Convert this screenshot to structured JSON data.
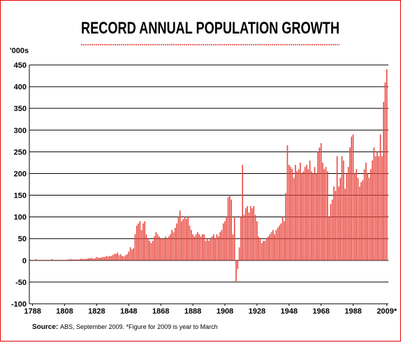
{
  "chart_data": {
    "type": "bar",
    "title": "RECORD ANNUAL POPULATION GROWTH",
    "y_label": "'000s",
    "source_label": "Source:",
    "source_text": "ABS, September 2009.  *Figure for 2009 is year to March",
    "color": "#e8473f",
    "grid": true,
    "xlim": [
      1786,
      2010
    ],
    "ylim": [
      -100,
      450
    ],
    "yticks": [
      -100,
      -50,
      0,
      50,
      100,
      150,
      200,
      250,
      300,
      350,
      400,
      450
    ],
    "xticks": [
      1788,
      1808,
      1828,
      1848,
      1868,
      1888,
      1908,
      1928,
      1948,
      1968,
      1988,
      {
        "value": 2009,
        "label": "2009*"
      }
    ],
    "x": [
      1788,
      1789,
      1790,
      1791,
      1792,
      1793,
      1794,
      1795,
      1796,
      1797,
      1798,
      1799,
      1800,
      1801,
      1802,
      1803,
      1804,
      1805,
      1806,
      1807,
      1808,
      1809,
      1810,
      1811,
      1812,
      1813,
      1814,
      1815,
      1816,
      1817,
      1818,
      1819,
      1820,
      1821,
      1822,
      1823,
      1824,
      1825,
      1826,
      1827,
      1828,
      1829,
      1830,
      1831,
      1832,
      1833,
      1834,
      1835,
      1836,
      1837,
      1838,
      1839,
      1840,
      1841,
      1842,
      1843,
      1844,
      1845,
      1846,
      1847,
      1848,
      1849,
      1850,
      1851,
      1852,
      1853,
      1854,
      1855,
      1856,
      1857,
      1858,
      1859,
      1860,
      1861,
      1862,
      1863,
      1864,
      1865,
      1866,
      1867,
      1868,
      1869,
      1870,
      1871,
      1872,
      1873,
      1874,
      1875,
      1876,
      1877,
      1878,
      1879,
      1880,
      1881,
      1882,
      1883,
      1884,
      1885,
      1886,
      1887,
      1888,
      1889,
      1890,
      1891,
      1892,
      1893,
      1894,
      1895,
      1896,
      1897,
      1898,
      1899,
      1900,
      1901,
      1902,
      1903,
      1904,
      1905,
      1906,
      1907,
      1908,
      1909,
      1910,
      1911,
      1912,
      1913,
      1914,
      1915,
      1916,
      1917,
      1918,
      1919,
      1920,
      1921,
      1922,
      1923,
      1924,
      1925,
      1926,
      1927,
      1928,
      1929,
      1930,
      1931,
      1932,
      1933,
      1934,
      1935,
      1936,
      1937,
      1938,
      1939,
      1940,
      1941,
      1942,
      1943,
      1944,
      1945,
      1946,
      1947,
      1948,
      1949,
      1950,
      1951,
      1952,
      1953,
      1954,
      1955,
      1956,
      1957,
      1958,
      1959,
      1960,
      1961,
      1962,
      1963,
      1964,
      1965,
      1966,
      1967,
      1968,
      1969,
      1970,
      1971,
      1972,
      1973,
      1974,
      1975,
      1976,
      1977,
      1978,
      1979,
      1980,
      1981,
      1982,
      1983,
      1984,
      1985,
      1986,
      1987,
      1988,
      1989,
      1990,
      1991,
      1992,
      1993,
      1994,
      1995,
      1996,
      1997,
      1998,
      1999,
      2000,
      2001,
      2002,
      2003,
      2004,
      2005,
      2006,
      2007,
      2008,
      2009
    ],
    "values": [
      1,
      1,
      3,
      1,
      1,
      1,
      1,
      1,
      1,
      1,
      1,
      1,
      3,
      1,
      1,
      1,
      1,
      1,
      1,
      1,
      1,
      1,
      2,
      2,
      3,
      2,
      2,
      2,
      2,
      2,
      4,
      3,
      3,
      3,
      4,
      5,
      5,
      6,
      4,
      5,
      8,
      6,
      6,
      7,
      8,
      8,
      10,
      9,
      10,
      10,
      12,
      15,
      15,
      18,
      12,
      14,
      10,
      9,
      12,
      14,
      20,
      30,
      25,
      28,
      60,
      80,
      85,
      90,
      70,
      85,
      90,
      60,
      50,
      45,
      40,
      45,
      55,
      65,
      60,
      55,
      50,
      50,
      50,
      55,
      50,
      55,
      60,
      70,
      65,
      75,
      85,
      100,
      115,
      90,
      95,
      100,
      95,
      100,
      80,
      70,
      60,
      55,
      60,
      65,
      60,
      55,
      60,
      60,
      45,
      50,
      45,
      50,
      55,
      60,
      50,
      60,
      55,
      65,
      70,
      85,
      90,
      100,
      145,
      150,
      140,
      60,
      100,
      -50,
      -20,
      30,
      100,
      220,
      105,
      120,
      125,
      110,
      125,
      120,
      125,
      105,
      90,
      55,
      50,
      40,
      45,
      45,
      50,
      55,
      60,
      65,
      70,
      60,
      70,
      75,
      80,
      85,
      100,
      90,
      155,
      265,
      220,
      215,
      210,
      190,
      220,
      205,
      210,
      225,
      200,
      205,
      215,
      220,
      210,
      230,
      205,
      200,
      215,
      200,
      250,
      260,
      270,
      225,
      210,
      215,
      205,
      100,
      130,
      140,
      170,
      160,
      240,
      170,
      190,
      240,
      230,
      165,
      200,
      215,
      260,
      285,
      290,
      200,
      210,
      190,
      170,
      180,
      185,
      210,
      225,
      200,
      190,
      210,
      230,
      260,
      240,
      250,
      240,
      290,
      240,
      365,
      410,
      440
    ]
  }
}
